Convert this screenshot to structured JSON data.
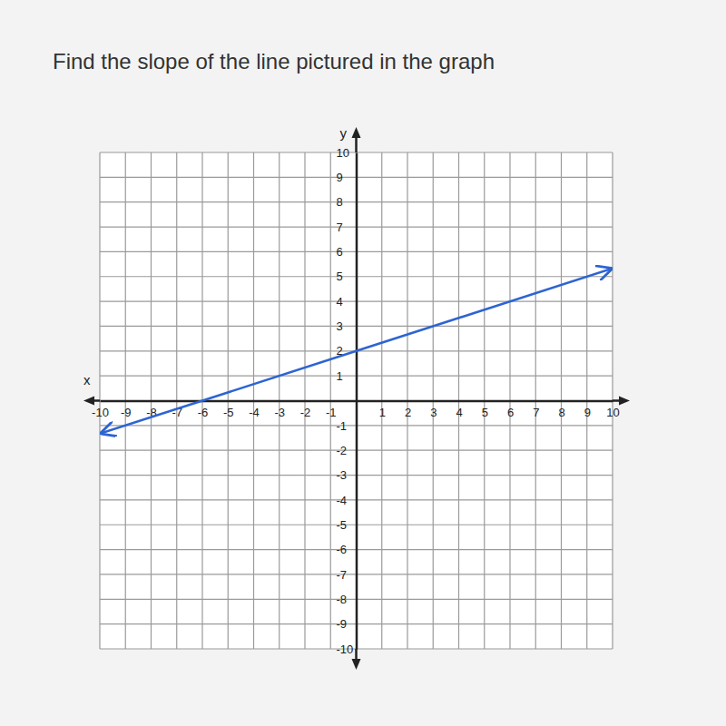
{
  "chart_data": {
    "type": "line",
    "title": "Find the slope of the line pictured in the graph",
    "x_label": "x",
    "y_label": "y",
    "x": [
      -10,
      -6,
      0,
      10
    ],
    "values": [
      -1.33,
      0,
      2,
      5.33
    ],
    "color": "#2d64d2",
    "xlim": [
      -10,
      10
    ],
    "ylim": [
      -10,
      10
    ],
    "xticks": [
      -10,
      -9,
      -8,
      -7,
      -6,
      -5,
      -4,
      -3,
      -2,
      -1,
      1,
      2,
      3,
      4,
      5,
      6,
      7,
      8,
      9,
      10
    ],
    "yticks": [
      -10,
      -9,
      -8,
      -7,
      -6,
      -5,
      -4,
      -3,
      -2,
      -1,
      1,
      2,
      3,
      4,
      5,
      6,
      7,
      8,
      9,
      10
    ],
    "grid": true
  }
}
